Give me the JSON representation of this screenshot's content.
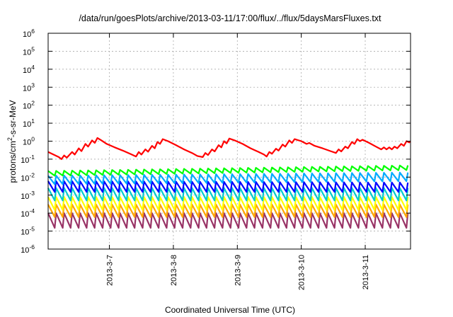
{
  "chart_data": {
    "type": "line",
    "title": "/data/run/goesPlots/archive/2013-03-11/17:00/flux/../flux/5daysMarsFluxes.txt",
    "xlabel": "Coordinated Universal Time (UTC)",
    "ylabel": "protons/cm²-s-sr-MeV",
    "y_scale": "log",
    "ylim": [
      1e-06,
      1000000.0
    ],
    "y_ticks": [
      {
        "value": 1e-06,
        "base": "10",
        "exp": "-6"
      },
      {
        "value": 1e-05,
        "base": "10",
        "exp": "-5"
      },
      {
        "value": 0.0001,
        "base": "10",
        "exp": "-4"
      },
      {
        "value": 0.001,
        "base": "10",
        "exp": "-3"
      },
      {
        "value": 0.01,
        "base": "10",
        "exp": "-2"
      },
      {
        "value": 0.1,
        "base": "10",
        "exp": "-1"
      },
      {
        "value": 1,
        "base": "10",
        "exp": "0"
      },
      {
        "value": 10,
        "base": "10",
        "exp": "1"
      },
      {
        "value": 100,
        "base": "10",
        "exp": "2"
      },
      {
        "value": 1000,
        "base": "10",
        "exp": "3"
      },
      {
        "value": 10000,
        "base": "10",
        "exp": "4"
      },
      {
        "value": 100000,
        "base": "10",
        "exp": "5"
      },
      {
        "value": 1000000,
        "base": "10",
        "exp": "6"
      }
    ],
    "xlim": [
      "2013-03-06T01:00",
      "2013-03-11T17:00"
    ],
    "x_ticks": [
      {
        "value": "2013-03-07T00:00",
        "label": "2013-3-7"
      },
      {
        "value": "2013-03-08T00:00",
        "label": "2013-3-8"
      },
      {
        "value": "2013-03-09T00:00",
        "label": "2013-3-9"
      },
      {
        "value": "2013-03-10T00:00",
        "label": "2013-3-10"
      },
      {
        "value": "2013-03-11T00:00",
        "label": "2013-3-11"
      }
    ],
    "grid": true,
    "legend": "none",
    "series": [
      {
        "color": "#ff0000",
        "points": [
          [
            "2013-03-06T01:00",
            0.25
          ],
          [
            "2013-03-06T03:00",
            0.18
          ],
          [
            "2013-03-06T05:00",
            0.13
          ],
          [
            "2013-03-06T06:00",
            0.1
          ],
          [
            "2013-03-06T07:00",
            0.16
          ],
          [
            "2013-03-06T08:00",
            0.12
          ],
          [
            "2013-03-06T10:00",
            0.25
          ],
          [
            "2013-03-06T11:00",
            0.18
          ],
          [
            "2013-03-06T12:30",
            0.4
          ],
          [
            "2013-03-06T13:30",
            0.28
          ],
          [
            "2013-03-06T15:00",
            0.7
          ],
          [
            "2013-03-06T16:00",
            0.5
          ],
          [
            "2013-03-06T17:30",
            1.1
          ],
          [
            "2013-03-06T18:30",
            0.8
          ],
          [
            "2013-03-06T19:30",
            1.5
          ],
          [
            "2013-03-06T21:00",
            1.1
          ],
          [
            "2013-03-06T23:00",
            0.7
          ],
          [
            "2013-03-07T02:00",
            0.45
          ],
          [
            "2013-03-07T05:00",
            0.3
          ],
          [
            "2013-03-07T08:00",
            0.19
          ],
          [
            "2013-03-07T10:00",
            0.14
          ],
          [
            "2013-03-07T11:00",
            0.25
          ],
          [
            "2013-03-07T12:00",
            0.18
          ],
          [
            "2013-03-07T13:30",
            0.35
          ],
          [
            "2013-03-07T14:30",
            0.26
          ],
          [
            "2013-03-07T16:00",
            0.55
          ],
          [
            "2013-03-07T17:00",
            0.4
          ],
          [
            "2013-03-07T18:00",
            0.9
          ],
          [
            "2013-03-07T19:00",
            0.7
          ],
          [
            "2013-03-07T20:00",
            1.3
          ],
          [
            "2013-03-07T22:00",
            1.0
          ],
          [
            "2013-03-08T01:00",
            0.6
          ],
          [
            "2013-03-08T04:00",
            0.35
          ],
          [
            "2013-03-08T07:00",
            0.22
          ],
          [
            "2013-03-08T09:00",
            0.15
          ],
          [
            "2013-03-08T11:00",
            0.13
          ],
          [
            "2013-03-08T12:00",
            0.22
          ],
          [
            "2013-03-08T13:00",
            0.17
          ],
          [
            "2013-03-08T14:30",
            0.35
          ],
          [
            "2013-03-08T15:30",
            0.27
          ],
          [
            "2013-03-08T17:00",
            0.6
          ],
          [
            "2013-03-08T18:00",
            0.45
          ],
          [
            "2013-03-08T19:00",
            1.0
          ],
          [
            "2013-03-08T20:00",
            0.75
          ],
          [
            "2013-03-08T21:00",
            1.4
          ],
          [
            "2013-03-08T23:00",
            1.1
          ],
          [
            "2013-03-09T02:00",
            0.7
          ],
          [
            "2013-03-09T05:00",
            0.4
          ],
          [
            "2013-03-09T08:00",
            0.25
          ],
          [
            "2013-03-09T10:00",
            0.18
          ],
          [
            "2013-03-09T11:00",
            0.14
          ],
          [
            "2013-03-09T12:00",
            0.25
          ],
          [
            "2013-03-09T13:00",
            0.2
          ],
          [
            "2013-03-09T14:30",
            0.38
          ],
          [
            "2013-03-09T15:30",
            0.3
          ],
          [
            "2013-03-09T17:00",
            0.65
          ],
          [
            "2013-03-09T18:00",
            0.5
          ],
          [
            "2013-03-09T19:30",
            1.1
          ],
          [
            "2013-03-09T20:30",
            0.8
          ],
          [
            "2013-03-09T21:30",
            1.3
          ],
          [
            "2013-03-10T00:00",
            1.0
          ],
          [
            "2013-03-10T02:00",
            0.7
          ],
          [
            "2013-03-10T03:00",
            0.8
          ],
          [
            "2013-03-10T05:00",
            0.55
          ],
          [
            "2013-03-10T08:00",
            0.4
          ],
          [
            "2013-03-10T11:00",
            0.28
          ],
          [
            "2013-03-10T13:00",
            0.22
          ],
          [
            "2013-03-10T14:00",
            0.35
          ],
          [
            "2013-03-10T15:00",
            0.27
          ],
          [
            "2013-03-10T16:30",
            0.5
          ],
          [
            "2013-03-10T17:30",
            0.4
          ],
          [
            "2013-03-10T19:00",
            0.9
          ],
          [
            "2013-03-10T20:00",
            0.7
          ],
          [
            "2013-03-10T21:00",
            1.3
          ],
          [
            "2013-03-10T22:00",
            1.0
          ],
          [
            "2013-03-10T23:00",
            1.2
          ],
          [
            "2013-03-11T01:30",
            0.8
          ],
          [
            "2013-03-11T04:00",
            0.5
          ],
          [
            "2013-03-11T06:00",
            0.35
          ],
          [
            "2013-03-11T07:00",
            0.45
          ],
          [
            "2013-03-11T08:00",
            0.35
          ],
          [
            "2013-03-11T09:00",
            0.45
          ],
          [
            "2013-03-11T10:00",
            0.35
          ],
          [
            "2013-03-11T11:00",
            0.5
          ],
          [
            "2013-03-11T12:00",
            0.4
          ],
          [
            "2013-03-11T13:30",
            0.7
          ],
          [
            "2013-03-11T14:30",
            0.55
          ],
          [
            "2013-03-11T15:30",
            1.0
          ],
          [
            "2013-03-11T16:30",
            0.85
          ],
          [
            "2013-03-11T17:00",
            1.0
          ]
        ]
      },
      {
        "color": "#00ff00",
        "sawtooth": {
          "peak": [
            0.022,
            0.045
          ],
          "trough": [
            0.012,
            0.025
          ],
          "period_hours": 3.0
        }
      },
      {
        "color": "#00aaff",
        "sawtooth": {
          "peak": [
            0.012,
            0.018
          ],
          "trough": [
            0.004,
            0.006
          ],
          "period_hours": 3.0
        }
      },
      {
        "color": "#0000ff",
        "sawtooth": {
          "peak": [
            0.006,
            0.005
          ],
          "trough": [
            0.0015,
            0.0015
          ],
          "period_hours": 3.0
        }
      },
      {
        "color": "#00cccc",
        "sawtooth": {
          "peak": [
            0.0025,
            0.0025
          ],
          "trough": [
            0.0005,
            0.0005
          ],
          "period_hours": 3.0
        }
      },
      {
        "color": "#ffff00",
        "sawtooth": {
          "peak": [
            0.0008,
            0.0008
          ],
          "trough": [
            0.00015,
            0.00015
          ],
          "period_hours": 3.0
        }
      },
      {
        "color": "#ffa500",
        "sawtooth": {
          "peak": [
            0.0003,
            0.0003
          ],
          "trough": [
            6e-05,
            6e-05
          ],
          "period_hours": 3.0
        }
      },
      {
        "color": "#993366",
        "sawtooth": {
          "peak": [
            0.0001,
            0.0001
          ],
          "trough": [
            1.5e-05,
            1.5e-05
          ],
          "period_hours": 3.0
        }
      }
    ]
  }
}
